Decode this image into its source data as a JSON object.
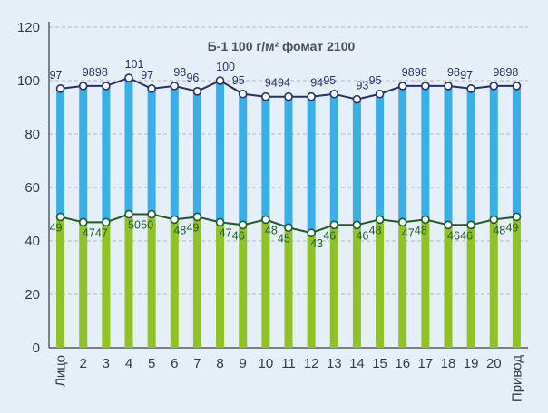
{
  "chart_data": {
    "type": "bar",
    "title": "Б-1 100 г/м² фомат 2100",
    "categories": [
      "Лицо",
      "2",
      "3",
      "4",
      "5",
      "6",
      "7",
      "8",
      "9",
      "10",
      "11",
      "12",
      "13",
      "14",
      "15",
      "16",
      "17",
      "18",
      "19",
      "20",
      "Привод"
    ],
    "series": [
      {
        "name": "",
        "values": [
          97,
          98,
          98,
          101,
          97,
          98,
          96,
          100,
          95,
          94,
          94,
          94,
          95,
          93,
          95,
          98,
          98,
          98,
          97,
          98,
          98
        ],
        "bar_color": "#3aaee6",
        "line_color": "#262f6a"
      },
      {
        "name": "",
        "values": [
          49,
          47,
          47,
          50,
          50,
          48,
          49,
          47,
          46,
          48,
          45,
          43,
          46,
          46,
          48,
          47,
          48,
          46,
          46,
          48,
          49
        ],
        "bar_color": "#8fc224",
        "line_color": "#1f5a28"
      }
    ],
    "ylim": [
      0,
      120
    ],
    "yticks": [
      0,
      20,
      40,
      60,
      80,
      100,
      120
    ],
    "grid": true,
    "xlabel": "",
    "ylabel": ""
  }
}
